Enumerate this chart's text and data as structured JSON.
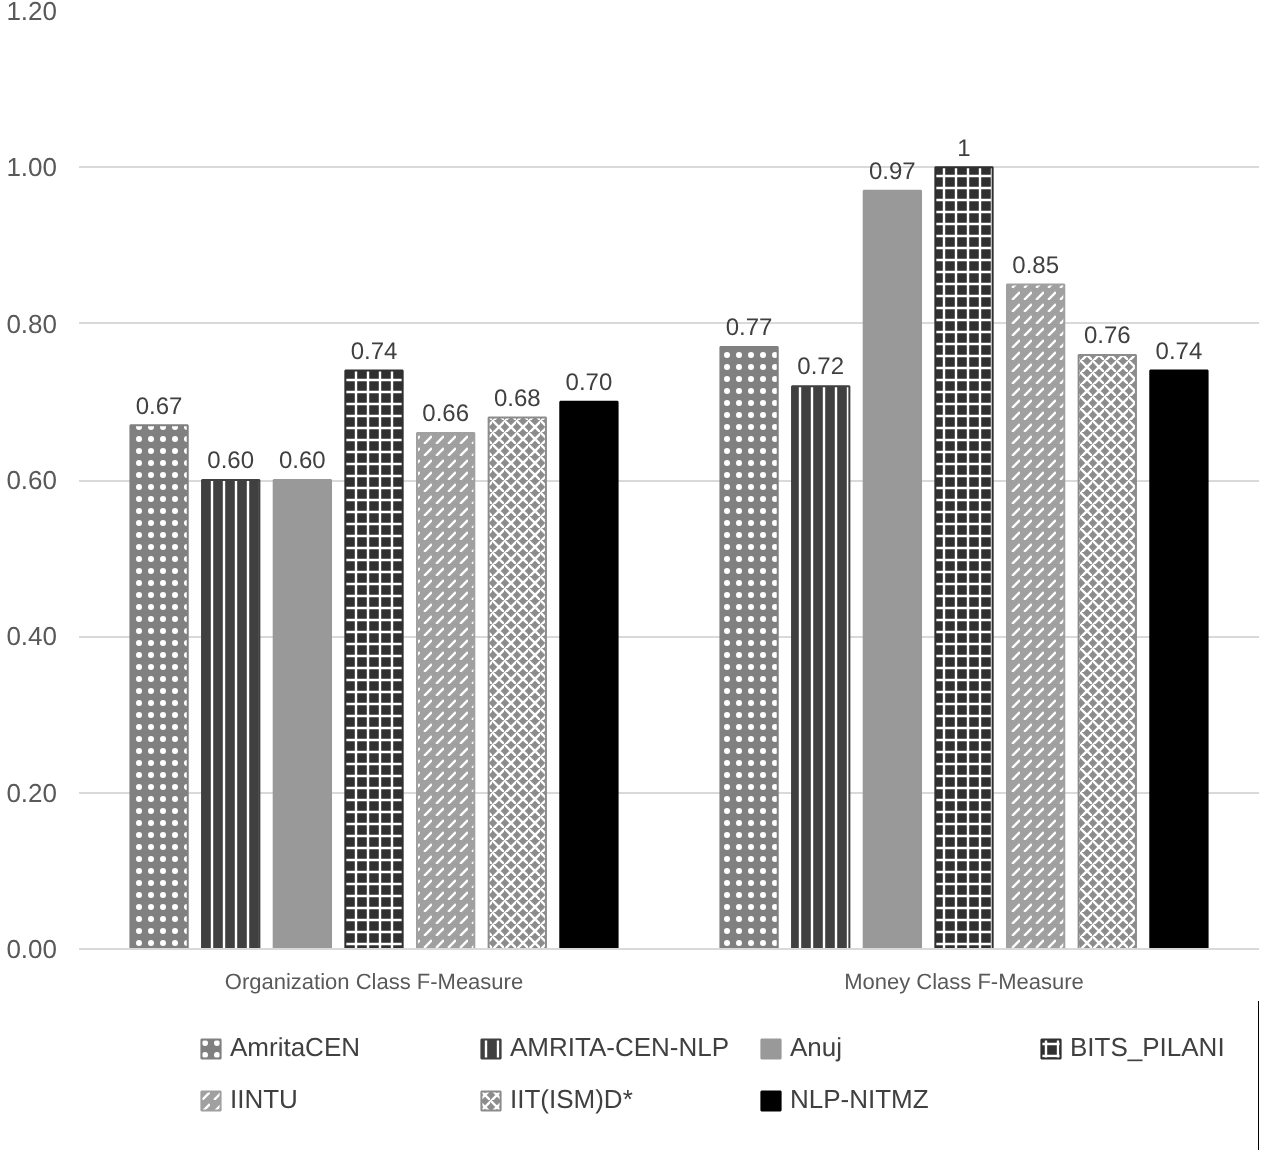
{
  "chart_data": {
    "type": "bar",
    "categories": [
      "Organization Class F-Measure",
      "Money Class F-Measure"
    ],
    "series": [
      {
        "name": "AmritaCEN",
        "color": "#808080",
        "values": [
          0.67,
          0.77
        ],
        "value_labels": [
          "0.67",
          "0.77"
        ]
      },
      {
        "name": "AMRITA-CEN-NLP",
        "color": "#404040",
        "values": [
          0.6,
          0.72
        ],
        "value_labels": [
          "0.60",
          "0.72"
        ]
      },
      {
        "name": "Anuj",
        "color": "#999999",
        "values": [
          0.6,
          0.97
        ],
        "value_labels": [
          "0.60",
          "0.97"
        ]
      },
      {
        "name": "BITS_PILANI",
        "color": "#303030",
        "values": [
          0.74,
          1
        ],
        "value_labels": [
          "0.74",
          "1"
        ]
      },
      {
        "name": "IINTU",
        "color": "#a0a0a0",
        "values": [
          0.66,
          0.85
        ],
        "value_labels": [
          "0.66",
          "0.85"
        ]
      },
      {
        "name": "IIT(ISM)D*",
        "color": "#8c8c8c",
        "values": [
          0.68,
          0.76
        ],
        "value_labels": [
          "0.68",
          "0.76"
        ]
      },
      {
        "name": "NLP-NITMZ",
        "color": "#000000",
        "values": [
          0.7,
          0.74
        ],
        "value_labels": [
          "0.70",
          "0.74"
        ]
      }
    ],
    "ylim": [
      0,
      1.2
    ],
    "yticks": [
      {
        "value": 0,
        "label": "0.00"
      },
      {
        "value": 0.2,
        "label": "0.20"
      },
      {
        "value": 0.4,
        "label": "0.40"
      },
      {
        "value": 0.6,
        "label": "0.60"
      },
      {
        "value": 0.8,
        "label": "0.80"
      },
      {
        "value": 1.0,
        "label": "1.00"
      },
      {
        "value": 1.2,
        "label": "1.20"
      }
    ],
    "grid": "y",
    "legend": "bottom"
  }
}
